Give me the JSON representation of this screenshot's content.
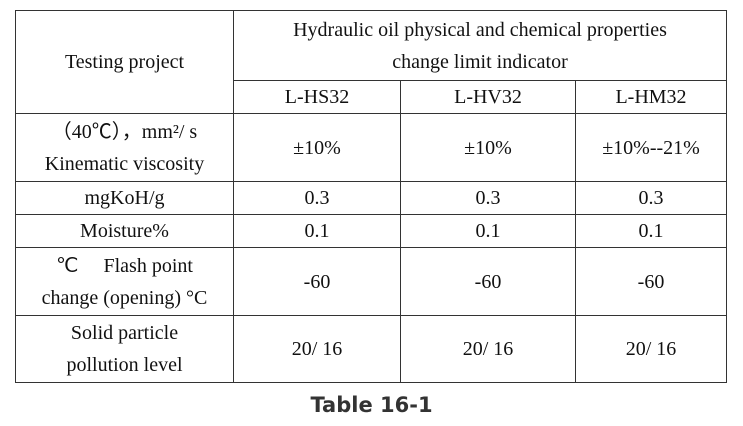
{
  "header": {
    "project": "Testing project",
    "group": [
      "Hydraulic oil physical and chemical properties",
      "change limit indicator"
    ],
    "columns": [
      "L-HS32",
      "L-HV32",
      "L-HM32"
    ]
  },
  "rows": [
    {
      "label": [
        "（40℃），mm²/ s",
        "Kinematic viscosity"
      ],
      "values": [
        "±10%",
        "±10%",
        "±10%--21%"
      ]
    },
    {
      "label": [
        "mgKoH/g"
      ],
      "values": [
        "0.3",
        "0.3",
        "0.3"
      ]
    },
    {
      "label": [
        "Moisture%"
      ],
      "values": [
        "0.1",
        "0.1",
        "0.1"
      ]
    },
    {
      "label": [
        "℃     Flash point",
        "change (opening) °C"
      ],
      "values": [
        "-60",
        "-60",
        "-60"
      ]
    },
    {
      "label": [
        "Solid particle",
        "pollution level"
      ],
      "values": [
        "20/ 16",
        "20/ 16",
        "20/ 16"
      ]
    }
  ],
  "caption": "Table 16-1"
}
